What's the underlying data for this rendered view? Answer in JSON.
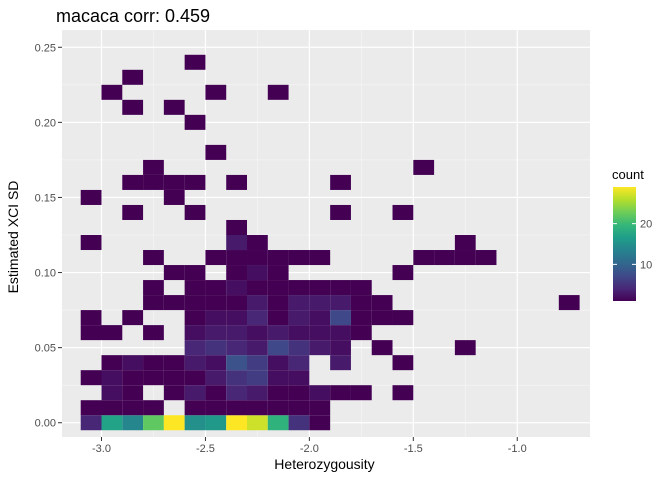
{
  "chart_data": {
    "type": "heatmap",
    "title": "macaca corr: 0.459",
    "xlabel": "Heterozygousity",
    "ylabel": "Estimated XCI SD",
    "xlim": [
      -3.19,
      -0.65
    ],
    "ylim": [
      -0.0095,
      0.2615
    ],
    "x_ticks": [
      -3.0,
      -2.5,
      -2.0,
      -1.5,
      -1.0
    ],
    "x_tick_labels": [
      "-3.0",
      "-2.5",
      "-2.0",
      "-1.5",
      "-1.0"
    ],
    "y_ticks": [
      0.0,
      0.05,
      0.1,
      0.15,
      0.2,
      0.25
    ],
    "y_tick_labels": [
      "0.00",
      "0.05",
      "0.10",
      "0.15",
      "0.20",
      "0.25"
    ],
    "bin_width_x": 0.1,
    "bin_width_y": 0.01,
    "grid": true,
    "colorscale": "viridis",
    "color_range": [
      1,
      29
    ],
    "legend": {
      "title": "count",
      "ticks": [
        10,
        20
      ],
      "tick_labels": [
        "10",
        "20"
      ],
      "placement": "right"
    },
    "bins": [
      {
        "x": -3.05,
        "y": 0.0,
        "count": 4
      },
      {
        "x": -2.95,
        "y": 0.0,
        "count": 17
      },
      {
        "x": -2.85,
        "y": 0.0,
        "count": 14
      },
      {
        "x": -2.75,
        "y": 0.0,
        "count": 22
      },
      {
        "x": -2.65,
        "y": 0.0,
        "count": 29
      },
      {
        "x": -2.55,
        "y": 0.0,
        "count": 15
      },
      {
        "x": -2.45,
        "y": 0.0,
        "count": 16
      },
      {
        "x": -2.35,
        "y": 0.0,
        "count": 29
      },
      {
        "x": -2.25,
        "y": 0.0,
        "count": 27
      },
      {
        "x": -2.15,
        "y": 0.0,
        "count": 19
      },
      {
        "x": -2.05,
        "y": 0.0,
        "count": 5
      },
      {
        "x": -1.95,
        "y": 0.0,
        "count": 1
      },
      {
        "x": -3.05,
        "y": 0.01,
        "count": 1
      },
      {
        "x": -2.95,
        "y": 0.01,
        "count": 1
      },
      {
        "x": -2.85,
        "y": 0.01,
        "count": 1
      },
      {
        "x": -2.75,
        "y": 0.01,
        "count": 1
      },
      {
        "x": -2.55,
        "y": 0.01,
        "count": 1
      },
      {
        "x": -2.45,
        "y": 0.01,
        "count": 1
      },
      {
        "x": -2.35,
        "y": 0.01,
        "count": 1
      },
      {
        "x": -2.25,
        "y": 0.01,
        "count": 1
      },
      {
        "x": -2.15,
        "y": 0.01,
        "count": 1
      },
      {
        "x": -2.05,
        "y": 0.01,
        "count": 1
      },
      {
        "x": -1.95,
        "y": 0.01,
        "count": 1
      },
      {
        "x": -2.95,
        "y": 0.02,
        "count": 2
      },
      {
        "x": -2.85,
        "y": 0.02,
        "count": 1
      },
      {
        "x": -2.65,
        "y": 0.02,
        "count": 1
      },
      {
        "x": -2.55,
        "y": 0.02,
        "count": 3
      },
      {
        "x": -2.45,
        "y": 0.02,
        "count": 1
      },
      {
        "x": -2.35,
        "y": 0.02,
        "count": 4
      },
      {
        "x": -2.25,
        "y": 0.02,
        "count": 3
      },
      {
        "x": -2.15,
        "y": 0.02,
        "count": 1
      },
      {
        "x": -2.05,
        "y": 0.02,
        "count": 1
      },
      {
        "x": -1.95,
        "y": 0.02,
        "count": 2
      },
      {
        "x": -1.85,
        "y": 0.02,
        "count": 1
      },
      {
        "x": -1.75,
        "y": 0.02,
        "count": 1
      },
      {
        "x": -1.55,
        "y": 0.02,
        "count": 1
      },
      {
        "x": -3.05,
        "y": 0.03,
        "count": 1
      },
      {
        "x": -2.95,
        "y": 0.03,
        "count": 2
      },
      {
        "x": -2.85,
        "y": 0.03,
        "count": 1
      },
      {
        "x": -2.75,
        "y": 0.03,
        "count": 1
      },
      {
        "x": -2.65,
        "y": 0.03,
        "count": 1
      },
      {
        "x": -2.55,
        "y": 0.03,
        "count": 1
      },
      {
        "x": -2.45,
        "y": 0.03,
        "count": 3
      },
      {
        "x": -2.35,
        "y": 0.03,
        "count": 5
      },
      {
        "x": -2.25,
        "y": 0.03,
        "count": 6
      },
      {
        "x": -2.15,
        "y": 0.03,
        "count": 2
      },
      {
        "x": -2.05,
        "y": 0.03,
        "count": 2
      },
      {
        "x": -2.95,
        "y": 0.04,
        "count": 1
      },
      {
        "x": -2.85,
        "y": 0.04,
        "count": 2
      },
      {
        "x": -2.75,
        "y": 0.04,
        "count": 1
      },
      {
        "x": -2.65,
        "y": 0.04,
        "count": 1
      },
      {
        "x": -2.55,
        "y": 0.04,
        "count": 3
      },
      {
        "x": -2.45,
        "y": 0.04,
        "count": 2
      },
      {
        "x": -2.35,
        "y": 0.04,
        "count": 8
      },
      {
        "x": -2.25,
        "y": 0.04,
        "count": 6
      },
      {
        "x": -2.15,
        "y": 0.04,
        "count": 2
      },
      {
        "x": -2.05,
        "y": 0.04,
        "count": 4
      },
      {
        "x": -1.85,
        "y": 0.04,
        "count": 3
      },
      {
        "x": -1.55,
        "y": 0.04,
        "count": 1
      },
      {
        "x": -2.55,
        "y": 0.05,
        "count": 4
      },
      {
        "x": -2.45,
        "y": 0.05,
        "count": 5
      },
      {
        "x": -2.35,
        "y": 0.05,
        "count": 4
      },
      {
        "x": -2.25,
        "y": 0.05,
        "count": 3
      },
      {
        "x": -2.15,
        "y": 0.05,
        "count": 7
      },
      {
        "x": -2.05,
        "y": 0.05,
        "count": 5
      },
      {
        "x": -1.95,
        "y": 0.05,
        "count": 3
      },
      {
        "x": -1.85,
        "y": 0.05,
        "count": 2
      },
      {
        "x": -1.65,
        "y": 0.05,
        "count": 1
      },
      {
        "x": -1.25,
        "y": 0.05,
        "count": 1
      },
      {
        "x": -3.05,
        "y": 0.06,
        "count": 1
      },
      {
        "x": -2.95,
        "y": 0.06,
        "count": 1
      },
      {
        "x": -2.75,
        "y": 0.06,
        "count": 1
      },
      {
        "x": -2.55,
        "y": 0.06,
        "count": 2
      },
      {
        "x": -2.45,
        "y": 0.06,
        "count": 3
      },
      {
        "x": -2.35,
        "y": 0.06,
        "count": 3
      },
      {
        "x": -2.25,
        "y": 0.06,
        "count": 2
      },
      {
        "x": -2.15,
        "y": 0.06,
        "count": 3
      },
      {
        "x": -2.05,
        "y": 0.06,
        "count": 2
      },
      {
        "x": -1.95,
        "y": 0.06,
        "count": 2
      },
      {
        "x": -1.85,
        "y": 0.06,
        "count": 2
      },
      {
        "x": -1.75,
        "y": 0.06,
        "count": 1
      },
      {
        "x": -3.05,
        "y": 0.07,
        "count": 1
      },
      {
        "x": -2.85,
        "y": 0.07,
        "count": 1
      },
      {
        "x": -2.55,
        "y": 0.07,
        "count": 1
      },
      {
        "x": -2.45,
        "y": 0.07,
        "count": 2
      },
      {
        "x": -2.35,
        "y": 0.07,
        "count": 2
      },
      {
        "x": -2.25,
        "y": 0.07,
        "count": 4
      },
      {
        "x": -2.15,
        "y": 0.07,
        "count": 1
      },
      {
        "x": -2.05,
        "y": 0.07,
        "count": 3
      },
      {
        "x": -1.95,
        "y": 0.07,
        "count": 2
      },
      {
        "x": -1.85,
        "y": 0.07,
        "count": 7
      },
      {
        "x": -1.75,
        "y": 0.07,
        "count": 1
      },
      {
        "x": -1.65,
        "y": 0.07,
        "count": 1
      },
      {
        "x": -1.55,
        "y": 0.07,
        "count": 1
      },
      {
        "x": -2.75,
        "y": 0.08,
        "count": 1
      },
      {
        "x": -2.65,
        "y": 0.08,
        "count": 1
      },
      {
        "x": -2.55,
        "y": 0.08,
        "count": 1
      },
      {
        "x": -2.45,
        "y": 0.08,
        "count": 1
      },
      {
        "x": -2.35,
        "y": 0.08,
        "count": 1
      },
      {
        "x": -2.25,
        "y": 0.08,
        "count": 3
      },
      {
        "x": -2.15,
        "y": 0.08,
        "count": 1
      },
      {
        "x": -2.05,
        "y": 0.08,
        "count": 3
      },
      {
        "x": -1.95,
        "y": 0.08,
        "count": 3
      },
      {
        "x": -1.85,
        "y": 0.08,
        "count": 3
      },
      {
        "x": -1.75,
        "y": 0.08,
        "count": 1
      },
      {
        "x": -1.65,
        "y": 0.08,
        "count": 1
      },
      {
        "x": -0.75,
        "y": 0.08,
        "count": 1
      },
      {
        "x": -2.75,
        "y": 0.09,
        "count": 1
      },
      {
        "x": -2.55,
        "y": 0.09,
        "count": 1
      },
      {
        "x": -2.45,
        "y": 0.09,
        "count": 1
      },
      {
        "x": -2.35,
        "y": 0.09,
        "count": 2
      },
      {
        "x": -2.25,
        "y": 0.09,
        "count": 1
      },
      {
        "x": -2.15,
        "y": 0.09,
        "count": 1
      },
      {
        "x": -2.05,
        "y": 0.09,
        "count": 1
      },
      {
        "x": -1.95,
        "y": 0.09,
        "count": 1
      },
      {
        "x": -1.85,
        "y": 0.09,
        "count": 1
      },
      {
        "x": -1.75,
        "y": 0.09,
        "count": 1
      },
      {
        "x": -2.65,
        "y": 0.1,
        "count": 1
      },
      {
        "x": -2.55,
        "y": 0.1,
        "count": 1
      },
      {
        "x": -2.35,
        "y": 0.1,
        "count": 1
      },
      {
        "x": -2.25,
        "y": 0.1,
        "count": 2
      },
      {
        "x": -2.15,
        "y": 0.1,
        "count": 1
      },
      {
        "x": -1.55,
        "y": 0.1,
        "count": 1
      },
      {
        "x": -2.75,
        "y": 0.11,
        "count": 1
      },
      {
        "x": -2.45,
        "y": 0.11,
        "count": 1
      },
      {
        "x": -2.35,
        "y": 0.11,
        "count": 1
      },
      {
        "x": -2.25,
        "y": 0.11,
        "count": 1
      },
      {
        "x": -2.15,
        "y": 0.11,
        "count": 1
      },
      {
        "x": -2.05,
        "y": 0.11,
        "count": 1
      },
      {
        "x": -1.95,
        "y": 0.11,
        "count": 1
      },
      {
        "x": -1.45,
        "y": 0.11,
        "count": 1
      },
      {
        "x": -1.35,
        "y": 0.11,
        "count": 1
      },
      {
        "x": -1.25,
        "y": 0.11,
        "count": 1
      },
      {
        "x": -1.15,
        "y": 0.11,
        "count": 1
      },
      {
        "x": -3.05,
        "y": 0.12,
        "count": 1
      },
      {
        "x": -2.35,
        "y": 0.12,
        "count": 3
      },
      {
        "x": -2.25,
        "y": 0.12,
        "count": 1
      },
      {
        "x": -1.25,
        "y": 0.12,
        "count": 1
      },
      {
        "x": -2.35,
        "y": 0.13,
        "count": 1
      },
      {
        "x": -2.85,
        "y": 0.14,
        "count": 1
      },
      {
        "x": -2.55,
        "y": 0.14,
        "count": 1
      },
      {
        "x": -1.85,
        "y": 0.14,
        "count": 1
      },
      {
        "x": -1.55,
        "y": 0.14,
        "count": 1
      },
      {
        "x": -3.05,
        "y": 0.15,
        "count": 1
      },
      {
        "x": -2.65,
        "y": 0.15,
        "count": 1
      },
      {
        "x": -2.85,
        "y": 0.16,
        "count": 1
      },
      {
        "x": -2.75,
        "y": 0.16,
        "count": 1
      },
      {
        "x": -2.65,
        "y": 0.16,
        "count": 1
      },
      {
        "x": -2.55,
        "y": 0.16,
        "count": 1
      },
      {
        "x": -2.35,
        "y": 0.16,
        "count": 1
      },
      {
        "x": -1.85,
        "y": 0.16,
        "count": 1
      },
      {
        "x": -2.75,
        "y": 0.17,
        "count": 1
      },
      {
        "x": -1.45,
        "y": 0.17,
        "count": 1
      },
      {
        "x": -2.45,
        "y": 0.18,
        "count": 1
      },
      {
        "x": -2.55,
        "y": 0.2,
        "count": 1
      },
      {
        "x": -2.85,
        "y": 0.21,
        "count": 1
      },
      {
        "x": -2.65,
        "y": 0.21,
        "count": 1
      },
      {
        "x": -2.95,
        "y": 0.22,
        "count": 1
      },
      {
        "x": -2.45,
        "y": 0.22,
        "count": 1
      },
      {
        "x": -2.15,
        "y": 0.22,
        "count": 1
      },
      {
        "x": -2.85,
        "y": 0.23,
        "count": 1
      },
      {
        "x": -2.55,
        "y": 0.24,
        "count": 1
      }
    ]
  }
}
